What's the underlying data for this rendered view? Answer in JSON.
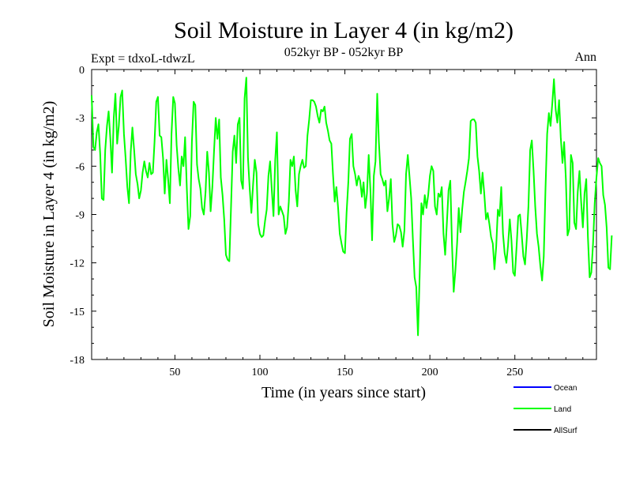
{
  "chart_data": {
    "type": "line",
    "title": "Soil Moisture in Layer 4 (in kg/m2)",
    "subtitle": "052kyr BP - 052kyr BP",
    "experiment": "Expt = tdxoL-tdwzL",
    "season": "Ann",
    "xlabel": "Time (in years since start)",
    "ylabel": "Soil Moisture in Layer 4 (in kg/m2)",
    "xlim": [
      1,
      298
    ],
    "ylim": [
      -18,
      0
    ],
    "xticks": [
      50,
      100,
      150,
      200,
      250
    ],
    "yticks": [
      0,
      -3,
      -6,
      -9,
      -12,
      -15,
      -18
    ],
    "grid": false,
    "legend_position": "bottom-right",
    "series": [
      {
        "name": "Ocean",
        "color": "#0000ff",
        "values": []
      },
      {
        "name": "Land",
        "color": "#00ff00",
        "x_start": 1,
        "x_step": 1,
        "values": [
          -1.6,
          -4.8,
          -5.0,
          -3.9,
          -3.4,
          -5.2,
          -8.0,
          -8.1,
          -5.0,
          -3.5,
          -2.6,
          -4.3,
          -6.4,
          -3.0,
          -1.5,
          -4.6,
          -3.5,
          -1.7,
          -1.3,
          -4.0,
          -5.5,
          -7.3,
          -8.3,
          -5.1,
          -3.6,
          -5.0,
          -6.5,
          -7.1,
          -8.0,
          -7.5,
          -6.4,
          -5.7,
          -6.3,
          -6.7,
          -5.8,
          -6.5,
          -6.4,
          -4.5,
          -2.0,
          -1.7,
          -4.1,
          -4.2,
          -5.5,
          -7.7,
          -5.6,
          -6.8,
          -8.3,
          -4.0,
          -1.7,
          -2.1,
          -4.7,
          -6.1,
          -7.2,
          -5.4,
          -6.0,
          -4.2,
          -7.4,
          -9.9,
          -9.1,
          -4.5,
          -2.0,
          -2.2,
          -5.9,
          -6.8,
          -7.4,
          -8.6,
          -9.0,
          -7.6,
          -5.1,
          -6.4,
          -8.8,
          -7.3,
          -5.1,
          -3.0,
          -4.3,
          -3.1,
          -6.7,
          -7.8,
          -9.3,
          -11.5,
          -11.8,
          -11.9,
          -8.6,
          -5.1,
          -4.1,
          -5.8,
          -3.4,
          -3.0,
          -6.9,
          -7.4,
          -1.8,
          -0.5,
          -5.5,
          -7.4,
          -8.9,
          -7.1,
          -5.6,
          -6.4,
          -9.6,
          -10.2,
          -10.4,
          -10.3,
          -9.4,
          -8.7,
          -6.6,
          -5.7,
          -7.5,
          -9.1,
          -5.6,
          -3.9,
          -9.0,
          -8.5,
          -8.8,
          -9.1,
          -10.2,
          -9.8,
          -8.2,
          -5.6,
          -6.0,
          -5.4,
          -7.5,
          -8.5,
          -6.5,
          -6.0,
          -5.6,
          -6.1,
          -6.0,
          -4.1,
          -3.1,
          -1.9,
          -1.9,
          -2.0,
          -2.3,
          -2.9,
          -3.3,
          -2.5,
          -2.6,
          -2.3,
          -3.3,
          -3.8,
          -4.4,
          -4.6,
          -6.5,
          -8.2,
          -7.3,
          -8.6,
          -10.2,
          -10.8,
          -11.3,
          -11.4,
          -8.9,
          -7.0,
          -4.3,
          -4.0,
          -6.0,
          -6.5,
          -7.2,
          -6.6,
          -6.9,
          -7.9,
          -7.0,
          -8.6,
          -7.7,
          -5.3,
          -7.4,
          -10.6,
          -6.6,
          -5.7,
          -1.5,
          -4.5,
          -6.5,
          -6.8,
          -7.2,
          -6.9,
          -8.8,
          -8.0,
          -6.8,
          -9.6,
          -10.7,
          -10.3,
          -9.6,
          -9.7,
          -10.1,
          -11.0,
          -10.0,
          -6.5,
          -5.3,
          -6.6,
          -8.0,
          -10.5,
          -12.9,
          -13.5,
          -16.5,
          -12.8,
          -8.3,
          -9.0,
          -7.8,
          -8.6,
          -7.8,
          -6.6,
          -6.0,
          -6.3,
          -8.5,
          -9.0,
          -7.7,
          -7.9,
          -7.3,
          -10.2,
          -11.5,
          -9.5,
          -7.5,
          -6.9,
          -10.8,
          -13.8,
          -12.5,
          -10.8,
          -8.6,
          -10.1,
          -8.7,
          -7.6,
          -7.0,
          -6.3,
          -5.5,
          -3.2,
          -3.1,
          -3.1,
          -3.3,
          -5.4,
          -6.3,
          -7.7,
          -6.4,
          -7.7,
          -9.3,
          -8.9,
          -9.6,
          -10.4,
          -10.8,
          -12.4,
          -11.0,
          -8.7,
          -9.1,
          -7.3,
          -10.2,
          -11.4,
          -12.0,
          -10.9,
          -9.3,
          -10.6,
          -12.6,
          -12.8,
          -11.0,
          -9.1,
          -9.0,
          -10.2,
          -11.6,
          -12.1,
          -10.5,
          -8.5,
          -5.0,
          -4.4,
          -6.3,
          -8.5,
          -10.2,
          -11.0,
          -12.2,
          -13.1,
          -11.6,
          -7.4,
          -4.0,
          -2.7,
          -3.5,
          -2.1,
          -0.6,
          -2.5,
          -3.3,
          -1.9,
          -4.2,
          -5.8,
          -4.5,
          -6.8,
          -10.3,
          -9.9,
          -5.3,
          -5.8,
          -9.5,
          -9.9,
          -7.6,
          -6.3,
          -8.2,
          -9.8,
          -7.7,
          -6.8,
          -10.4,
          -12.9,
          -12.6,
          -10.8,
          -8.3,
          -6.7,
          -5.5,
          -5.8,
          -6.0,
          -7.8,
          -8.4,
          -9.8,
          -12.3,
          -12.4,
          -10.3
        ]
      },
      {
        "name": "AllSurf",
        "color": "#000000",
        "values": []
      }
    ]
  }
}
